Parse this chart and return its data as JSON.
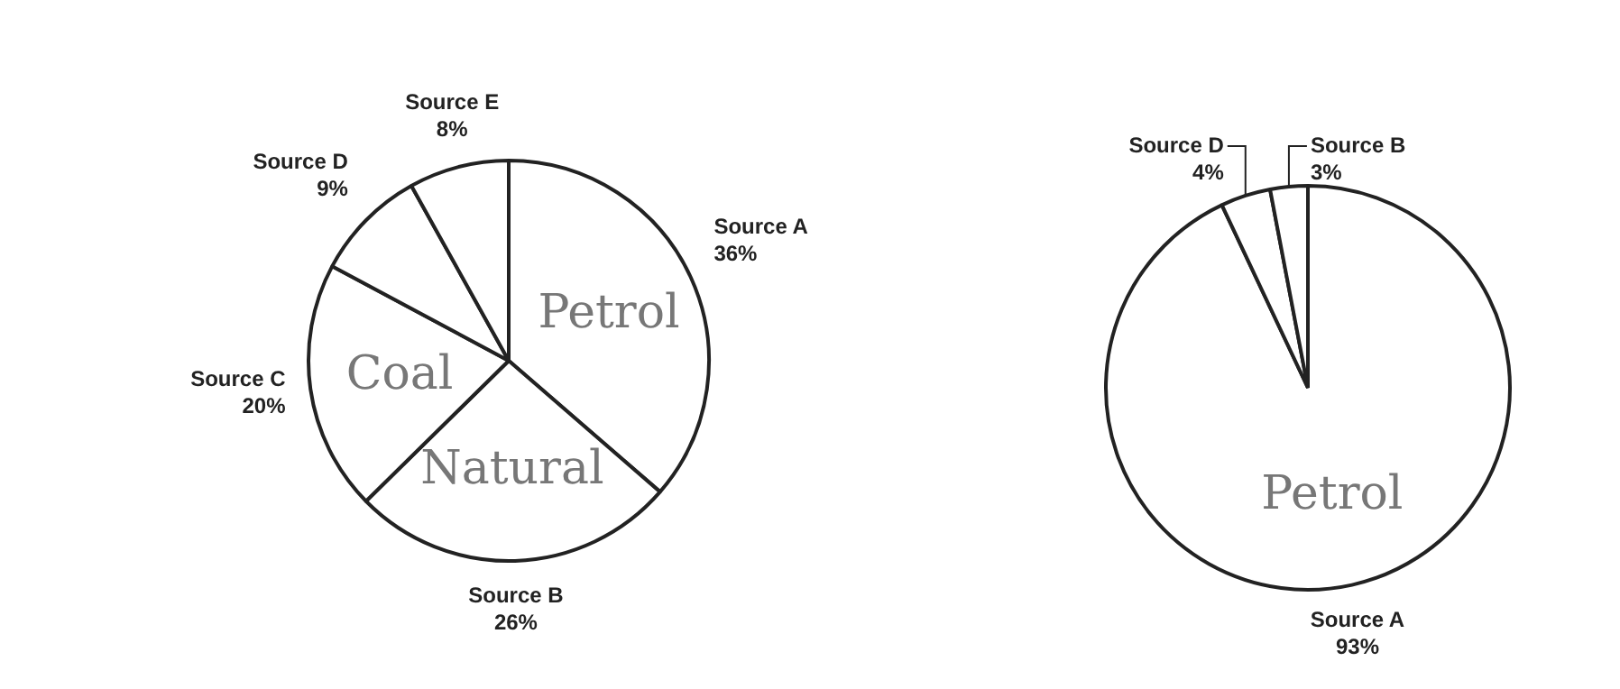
{
  "chart_data": [
    {
      "type": "pie",
      "categories": [
        "Source A",
        "Source B",
        "Source C",
        "Source D",
        "Source E"
      ],
      "values": [
        36,
        26,
        20,
        9,
        8
      ],
      "colors": [
        "#ffffff",
        "#ffffff",
        "#ffffff",
        "#ffffff",
        "#ffffff"
      ],
      "value_labels": [
        "36%",
        "26%",
        "20%",
        "9%",
        "8%"
      ],
      "annotations": [
        "Petrol",
        "Natural",
        "Coal"
      ],
      "legend": false
    },
    {
      "type": "pie",
      "categories": [
        "Source A",
        "Source D",
        "Source B"
      ],
      "values": [
        93,
        4,
        3
      ],
      "colors": [
        "#ffffff",
        "#ffffff",
        "#ffffff"
      ],
      "value_labels": [
        "93%",
        "4%",
        "3%"
      ],
      "annotations": [
        "Petrol"
      ],
      "legend": false
    }
  ]
}
